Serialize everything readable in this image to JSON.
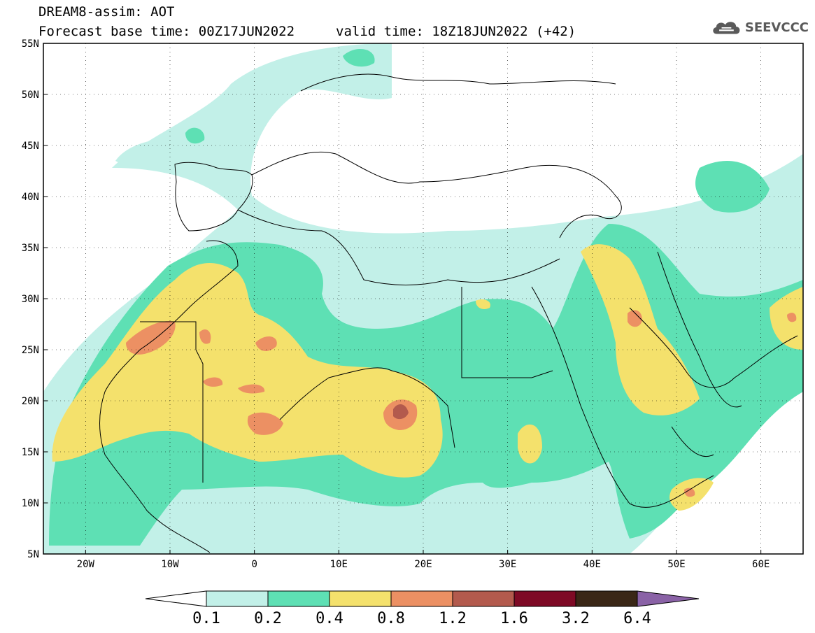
{
  "header": {
    "title": "DREAM8-assim: AOT",
    "base_time": "Forecast base time: 00Z17JUN2022",
    "valid_time": "valid time: 18Z18JUN2022 (+42)"
  },
  "logo": {
    "text": "SEEVCCC",
    "icon": "cloud-icon"
  },
  "map": {
    "lon_range": [
      -25,
      65
    ],
    "lat_range": [
      5,
      55
    ],
    "lat_ticks": [
      {
        "value": 55,
        "label": "55N"
      },
      {
        "value": 50,
        "label": "50N"
      },
      {
        "value": 45,
        "label": "45N"
      },
      {
        "value": 40,
        "label": "40N"
      },
      {
        "value": 35,
        "label": "35N"
      },
      {
        "value": 30,
        "label": "30N"
      },
      {
        "value": 25,
        "label": "25N"
      },
      {
        "value": 20,
        "label": "20N"
      },
      {
        "value": 15,
        "label": "15N"
      },
      {
        "value": 10,
        "label": "10N"
      },
      {
        "value": 5,
        "label": "5N"
      }
    ],
    "lon_ticks": [
      {
        "value": -20,
        "label": "20W"
      },
      {
        "value": -10,
        "label": "10W"
      },
      {
        "value": 0,
        "label": "0"
      },
      {
        "value": 10,
        "label": "10E"
      },
      {
        "value": 20,
        "label": "20E"
      },
      {
        "value": 30,
        "label": "30E"
      },
      {
        "value": 40,
        "label": "40E"
      },
      {
        "value": 50,
        "label": "50E"
      },
      {
        "value": 60,
        "label": "60E"
      }
    ],
    "gridlines": true
  },
  "colorbar": {
    "labels": [
      "0.1",
      "0.2",
      "0.4",
      "0.8",
      "1.2",
      "1.6",
      "3.2",
      "6.4"
    ],
    "under_color": "#ffffff",
    "colors": [
      "#c2f0e8",
      "#5ee0b4",
      "#f4e16c",
      "#ec9063",
      "#b35a4d",
      "#7e0a25",
      "#3a2716"
    ],
    "over_color": "#8a62a6"
  },
  "aot_levels": {
    "l1": "#c2f0e8",
    "l2": "#5ee0b4",
    "l3": "#f4e16c",
    "l4": "#ec9063",
    "l5": "#b35a4d"
  }
}
